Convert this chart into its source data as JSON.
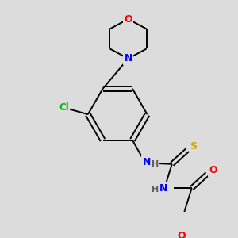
{
  "background_color": "#dcdcdc",
  "bond_color": "#000000",
  "atom_colors": {
    "N": "#0000ff",
    "O": "#ff0000",
    "S": "#ccaa00",
    "Cl": "#00bb00",
    "C": "#000000",
    "H": "#606060"
  },
  "figsize": [
    3.0,
    3.0
  ],
  "dpi": 100
}
